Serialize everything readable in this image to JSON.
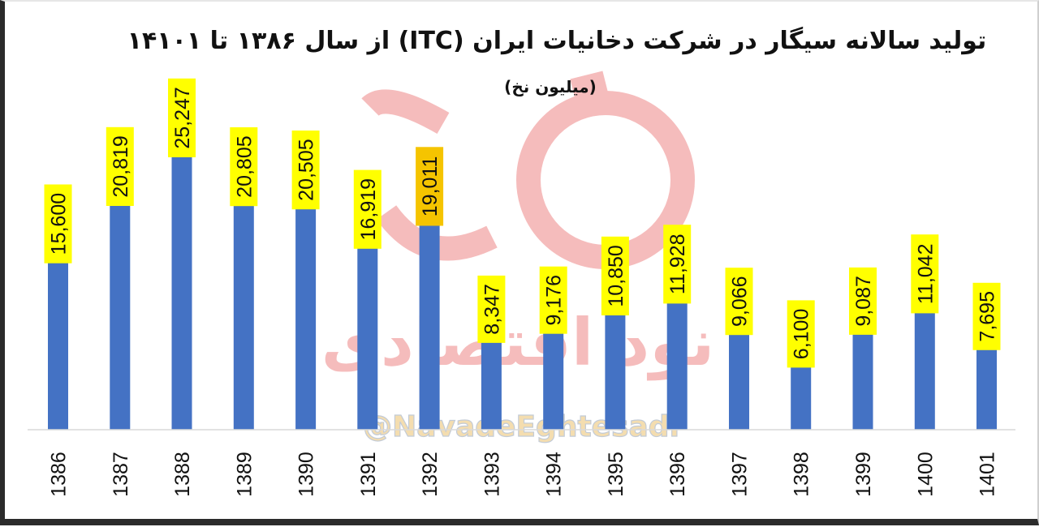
{
  "chart_data": {
    "type": "bar",
    "title": "تولید سالانه سیگار در شرکت دخانیات ایران (ITC) از سال ۱۳۸۶ تا ۱۴۱۰۱",
    "subtitle": "(میلیون نخ)",
    "categories": [
      "1386",
      "1387",
      "1388",
      "1389",
      "1390",
      "1391",
      "1392",
      "1393",
      "1394",
      "1395",
      "1396",
      "1397",
      "1398",
      "1399",
      "1400",
      "1401"
    ],
    "values": [
      15600,
      20819,
      25247,
      20805,
      20505,
      16919,
      19011,
      8347,
      9176,
      10850,
      11928,
      9066,
      6100,
      9087,
      11042,
      7695
    ],
    "value_labels": [
      "15,600",
      "20,819",
      "25,247",
      "20,805",
      "20,505",
      "16,919",
      "19,011",
      "8,347",
      "9,176",
      "10,850",
      "11,928",
      "9,066",
      "6,100",
      "9,087",
      "11,042",
      "7,695"
    ],
    "ylim": [
      0,
      25247
    ],
    "grid": false,
    "bar_color": "#4472c4",
    "label_bg_color": "#ffff00",
    "highlight_label_color": "#f5c400",
    "highlight_category": "1392"
  },
  "watermark": {
    "handle": "@NavadeEghtesadi",
    "arabic": "نود اقتصادی",
    "logo_color": "#f2a6a6"
  }
}
